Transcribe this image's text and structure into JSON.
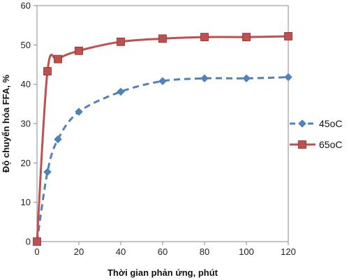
{
  "chart_data": {
    "type": "line",
    "title": "",
    "xlabel": "Thời gian phản ứng, phút",
    "ylabel": "Độ chuyển hóa FFA, %",
    "xlim": [
      0,
      120
    ],
    "ylim": [
      0,
      60
    ],
    "xticks": [
      0,
      20,
      40,
      60,
      80,
      100,
      120
    ],
    "yticks": [
      0,
      10,
      20,
      30,
      40,
      50,
      60
    ],
    "grid": false,
    "legend_position": "right",
    "series": [
      {
        "name": "45oC",
        "color": "#4f81bd",
        "line_style": "dashed",
        "marker": "diamond",
        "x": [
          0,
          5,
          10,
          20,
          40,
          60,
          80,
          100,
          120
        ],
        "y": [
          0,
          17.7,
          26.0,
          33.0,
          38.1,
          40.8,
          41.5,
          41.5,
          41.8
        ]
      },
      {
        "name": "65oC",
        "color": "#c0504d",
        "line_style": "solid",
        "marker": "square",
        "x": [
          0,
          5,
          10,
          20,
          40,
          60,
          80,
          100,
          120
        ],
        "y": [
          0,
          43.3,
          46.4,
          48.5,
          50.8,
          51.6,
          52.0,
          52.0,
          52.2
        ]
      }
    ]
  }
}
